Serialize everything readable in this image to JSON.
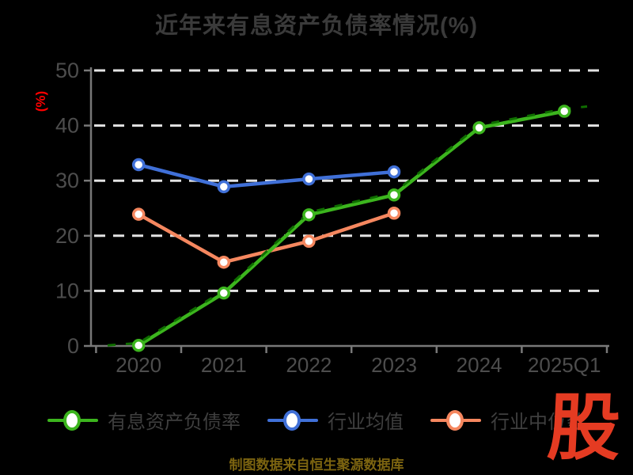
{
  "title": "近年来有息资产负债率情况(%)",
  "caption": "制图数据来自恒生聚源数据库",
  "logo": {
    "text": "股",
    "color": "#e53b22"
  },
  "chart_data": {
    "type": "line",
    "title": "近年来有息资产负债率情况(%)",
    "xlabel": "",
    "ylabel": "(%)",
    "categories": [
      "2020",
      "2021",
      "2022",
      "2023",
      "2024",
      "2025Q1"
    ],
    "series": [
      {
        "name": "有息资产负债率",
        "color": "#3cb51e",
        "marker": "circle-white-fill",
        "line_style": "solid-with-dark-dashed-overlay",
        "values": [
          0.1,
          9.6,
          23.8,
          27.4,
          39.6,
          42.6
        ]
      },
      {
        "name": "行业均值",
        "color": "#4070d8",
        "marker": "circle-white-fill",
        "line_style": "solid",
        "values": [
          32.9,
          28.9,
          30.3,
          31.6,
          null,
          null
        ]
      },
      {
        "name": "行业中位数",
        "color": "#f5875f",
        "marker": "circle-white-fill",
        "line_style": "solid",
        "values": [
          23.9,
          15.2,
          19.0,
          24.1,
          null,
          null
        ]
      }
    ],
    "ylim": [
      0,
      50
    ],
    "yticks": [
      0,
      10,
      20,
      30,
      40,
      50
    ],
    "grid": {
      "horizontal": true,
      "style": "dashed",
      "color": "#e3e3e3"
    },
    "legend_position": "bottom"
  },
  "colors": {
    "background": "#000000",
    "title_text": "#3a3a3a",
    "tick_text": "#4d4d4d",
    "legend_text": "#3f3f3f",
    "grid": "#e3e3e3",
    "axis": "#787878",
    "ylabel": "#ff0000",
    "caption": "#7c6410",
    "logo": "#e53b22",
    "overlay_dash": "#0f6e00",
    "marker_fill": "#ffffff"
  }
}
